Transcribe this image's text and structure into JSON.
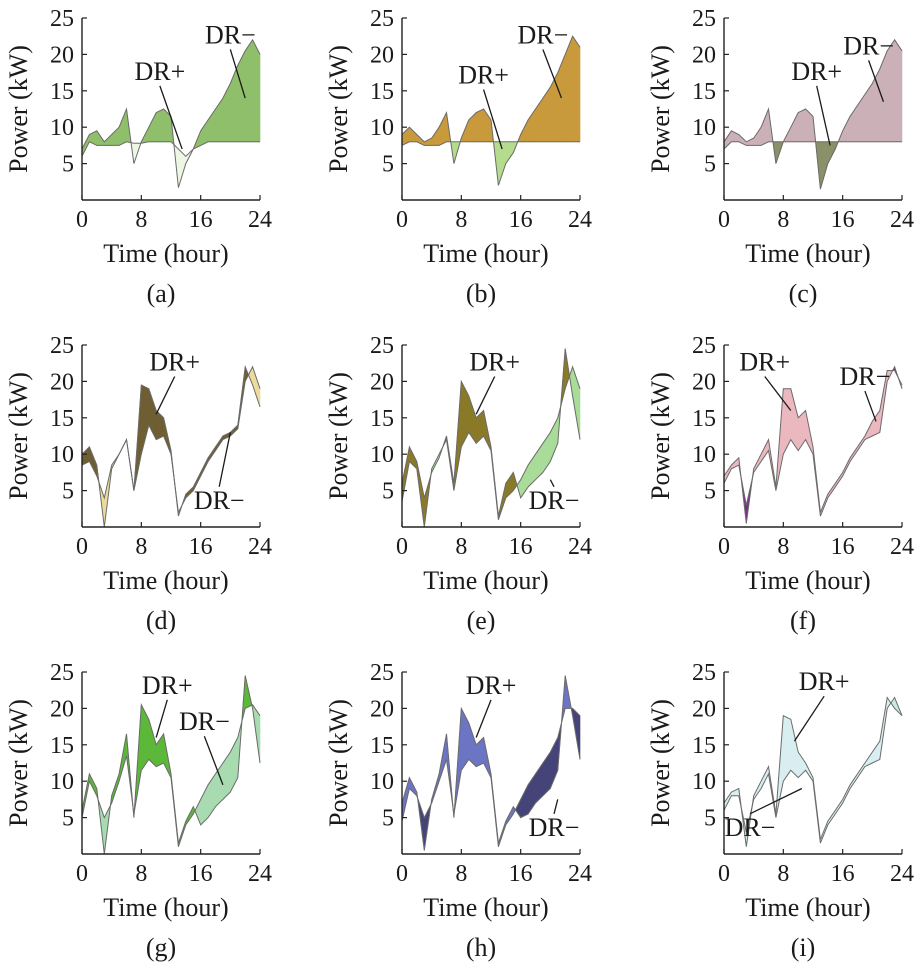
{
  "chart_data": [
    {
      "type": "area",
      "caption": "(a)",
      "xlabel": "Time (hour)",
      "ylabel": "Power (kW)",
      "xlim": [
        0,
        24
      ],
      "ylim": [
        0,
        25
      ],
      "xticks": [
        "0",
        "8",
        "16",
        "24"
      ],
      "yticks": [
        "5",
        "10",
        "15",
        "20",
        "25"
      ],
      "colors": {
        "plus": "#eef6e6",
        "minus": "#8fbf6a"
      },
      "x": [
        0,
        1,
        2,
        3,
        4,
        5,
        6,
        7,
        8,
        9,
        10,
        11,
        12,
        13,
        14,
        15,
        16,
        17,
        18,
        19,
        20,
        21,
        22,
        23,
        24
      ],
      "baseline": [
        6.0,
        8.0,
        7.5,
        7.5,
        7.5,
        7.5,
        8.0,
        7.8,
        7.8,
        8.0,
        8.0,
        8.0,
        8.0,
        7.0,
        6.0,
        7.0,
        7.5,
        8.0,
        8.0,
        8.0,
        8.0,
        8.0,
        8.0,
        8.0,
        8.0
      ],
      "adjusted": [
        7.0,
        9.0,
        9.5,
        8.0,
        9.0,
        10.0,
        12.5,
        5.0,
        8.0,
        10.0,
        12.0,
        12.5,
        11.5,
        1.7,
        5.0,
        7.0,
        9.5,
        11.0,
        12.5,
        14.0,
        16.0,
        18.5,
        20.5,
        22.0,
        20.0
      ],
      "annotations": [
        {
          "text": "DR+",
          "x": 13.5,
          "y": 7.0,
          "tx": 10.5,
          "ty": 16.5
        },
        {
          "text": "DR−",
          "x": 22.0,
          "y": 14.0,
          "tx": 20.0,
          "ty": 21.5
        }
      ]
    },
    {
      "type": "area",
      "caption": "(b)",
      "xlabel": "Time (hour)",
      "ylabel": "Power (kW)",
      "xlim": [
        0,
        24
      ],
      "ylim": [
        0,
        25
      ],
      "xticks": [
        "0",
        "8",
        "16",
        "24"
      ],
      "yticks": [
        "5",
        "10",
        "15",
        "20",
        "25"
      ],
      "colors": {
        "plus": "#b4dc8c",
        "minus": "#c89a3c"
      },
      "x": [
        0,
        1,
        2,
        3,
        4,
        5,
        6,
        7,
        8,
        9,
        10,
        11,
        12,
        13,
        14,
        15,
        16,
        17,
        18,
        19,
        20,
        21,
        22,
        23,
        24
      ],
      "baseline": [
        7.5,
        8.0,
        8.0,
        7.5,
        7.5,
        7.5,
        8.0,
        8.0,
        8.0,
        8.0,
        8.0,
        8.0,
        8.0,
        8.0,
        8.0,
        8.0,
        8.0,
        8.0,
        8.0,
        8.0,
        8.0,
        8.0,
        8.0,
        8.0,
        8.0
      ],
      "adjusted": [
        9.0,
        10.0,
        9.0,
        8.0,
        8.5,
        10.0,
        12.0,
        5.0,
        8.5,
        11.0,
        12.0,
        12.5,
        11.0,
        2.0,
        5.0,
        6.5,
        9.0,
        11.0,
        12.5,
        14.0,
        15.5,
        17.5,
        20.0,
        22.5,
        21.0
      ],
      "annotations": [
        {
          "text": "DR+",
          "x": 13.5,
          "y": 7.0,
          "tx": 11.0,
          "ty": 16.0
        },
        {
          "text": "DR−",
          "x": 21.5,
          "y": 14.0,
          "tx": 19.0,
          "ty": 21.5
        }
      ]
    },
    {
      "type": "area",
      "caption": "(c)",
      "xlabel": "Time (hour)",
      "ylabel": "Power (kW)",
      "xlim": [
        0,
        24
      ],
      "ylim": [
        0,
        25
      ],
      "xticks": [
        "0",
        "8",
        "16",
        "24"
      ],
      "yticks": [
        "5",
        "10",
        "15",
        "20",
        "25"
      ],
      "colors": {
        "plus": "#8a9068",
        "minus": "#cbb0b8"
      },
      "x": [
        0,
        1,
        2,
        3,
        4,
        5,
        6,
        7,
        8,
        9,
        10,
        11,
        12,
        13,
        14,
        15,
        16,
        17,
        18,
        19,
        20,
        21,
        22,
        23,
        24
      ],
      "baseline": [
        7.0,
        8.0,
        8.0,
        7.5,
        7.5,
        7.5,
        8.0,
        8.0,
        8.0,
        8.0,
        8.0,
        8.0,
        8.0,
        8.0,
        8.0,
        8.0,
        8.0,
        8.0,
        8.0,
        8.0,
        8.0,
        8.0,
        8.0,
        8.0,
        8.0
      ],
      "adjusted": [
        8.0,
        9.5,
        9.0,
        8.0,
        8.5,
        10.0,
        12.5,
        5.0,
        8.0,
        10.0,
        12.0,
        12.5,
        11.5,
        1.5,
        5.0,
        7.0,
        9.5,
        11.5,
        13.0,
        14.5,
        16.0,
        18.0,
        20.5,
        22.0,
        20.5
      ],
      "annotations": [
        {
          "text": "DR+",
          "x": 14.3,
          "y": 7.5,
          "tx": 12.5,
          "ty": 16.5
        },
        {
          "text": "DR−",
          "x": 21.5,
          "y": 13.5,
          "tx": 19.5,
          "ty": 20.0
        }
      ]
    },
    {
      "type": "area",
      "caption": "(d)",
      "xlabel": "Time (hour)",
      "ylabel": "Power (kW)",
      "xlim": [
        0,
        24
      ],
      "ylim": [
        0,
        25
      ],
      "xticks": [
        "0",
        "8",
        "16",
        "24"
      ],
      "yticks": [
        "5",
        "10",
        "15",
        "20",
        "25"
      ],
      "colors": {
        "plus": "#ecdc9c",
        "minus": "#6e5e32"
      },
      "x": [
        0,
        1,
        2,
        3,
        4,
        5,
        6,
        7,
        8,
        9,
        10,
        11,
        12,
        13,
        14,
        15,
        16,
        17,
        18,
        19,
        20,
        21,
        22,
        23,
        24
      ],
      "baseline": [
        8.5,
        9.0,
        7.0,
        4.0,
        8.5,
        10.0,
        12.0,
        5.0,
        10.0,
        14.0,
        12.0,
        12.5,
        10.0,
        2.0,
        4.0,
        5.0,
        7.0,
        9.0,
        10.5,
        12.0,
        12.5,
        13.5,
        20.0,
        22.0,
        19.0
      ],
      "adjusted": [
        10.0,
        11.0,
        8.5,
        0.0,
        8.0,
        10.0,
        12.0,
        5.0,
        19.5,
        19.0,
        16.0,
        15.0,
        10.5,
        1.5,
        4.5,
        5.5,
        7.5,
        9.5,
        11.0,
        12.5,
        13.0,
        14.0,
        22.0,
        19.5,
        16.5
      ],
      "annotations": [
        {
          "text": "DR+",
          "x": 10.0,
          "y": 15.5,
          "tx": 12.5,
          "ty": 21.5
        },
        {
          "text": "DR−",
          "x": 20.0,
          "y": 13.0,
          "tx": 18.5,
          "ty": 2.5
        }
      ]
    },
    {
      "type": "area",
      "caption": "(e)",
      "xlabel": "Time (hour)",
      "ylabel": "Power (kW)",
      "xlim": [
        0,
        24
      ],
      "ylim": [
        0,
        25
      ],
      "xticks": [
        "0",
        "8",
        "16",
        "24"
      ],
      "yticks": [
        "5",
        "10",
        "15",
        "20",
        "25"
      ],
      "colors": {
        "plus": "#a8dc98",
        "minus": "#8a7a28"
      },
      "x": [
        0,
        1,
        2,
        3,
        4,
        5,
        6,
        7,
        8,
        9,
        10,
        11,
        12,
        13,
        14,
        15,
        16,
        17,
        18,
        19,
        20,
        21,
        22,
        23,
        24
      ],
      "baseline": [
        3.5,
        9.0,
        8.0,
        0.0,
        8.0,
        10.0,
        12.0,
        5.0,
        11.0,
        13.0,
        11.5,
        12.5,
        10.5,
        1.0,
        4.0,
        5.0,
        6.5,
        8.5,
        10.0,
        11.5,
        13.0,
        15.0,
        19.0,
        22.0,
        19.0
      ],
      "adjusted": [
        6.0,
        11.0,
        9.0,
        4.0,
        7.5,
        9.5,
        12.5,
        6.0,
        20.0,
        18.0,
        15.0,
        16.0,
        11.0,
        1.5,
        6.0,
        7.5,
        4.0,
        5.5,
        6.5,
        7.5,
        9.0,
        11.5,
        24.5,
        18.0,
        12.0
      ],
      "annotations": [
        {
          "text": "DR+",
          "x": 10.0,
          "y": 15.5,
          "tx": 12.5,
          "ty": 21.5
        },
        {
          "text": "DR−",
          "x": 20.0,
          "y": 6.5,
          "tx": 20.5,
          "ty": 2.5
        }
      ]
    },
    {
      "type": "area",
      "caption": "(f)",
      "xlabel": "Time (hour)",
      "ylabel": "Power (kW)",
      "xlim": [
        0,
        24
      ],
      "ylim": [
        0,
        25
      ],
      "xticks": [
        "0",
        "8",
        "16",
        "24"
      ],
      "yticks": [
        "5",
        "10",
        "15",
        "20",
        "25"
      ],
      "colors": {
        "plus": "#7a2c8c",
        "minus": "#ecb8c0"
      },
      "x": [
        0,
        1,
        2,
        3,
        4,
        5,
        6,
        7,
        8,
        9,
        10,
        11,
        12,
        13,
        14,
        15,
        16,
        17,
        18,
        19,
        20,
        21,
        22,
        23,
        24
      ],
      "baseline": [
        6.0,
        8.0,
        8.5,
        3.0,
        7.5,
        9.0,
        10.5,
        5.0,
        10.0,
        12.0,
        10.5,
        12.0,
        10.0,
        1.5,
        4.0,
        5.5,
        7.0,
        9.0,
        10.5,
        12.0,
        12.5,
        13.0,
        20.0,
        22.0,
        19.0
      ],
      "adjusted": [
        7.0,
        8.5,
        9.5,
        0.5,
        8.0,
        10.0,
        12.0,
        5.5,
        19.0,
        19.0,
        15.0,
        16.0,
        11.0,
        2.0,
        4.5,
        6.0,
        7.5,
        9.5,
        11.0,
        12.5,
        14.5,
        16.0,
        21.5,
        21.5,
        19.5
      ],
      "annotations": [
        {
          "text": "DR+",
          "x": 9.0,
          "y": 16.0,
          "tx": 5.5,
          "ty": 21.5
        },
        {
          "text": "DR−",
          "x": 20.5,
          "y": 14.5,
          "tx": 19.0,
          "ty": 19.5
        }
      ]
    },
    {
      "type": "area",
      "caption": "(g)",
      "xlabel": "Time (hour)",
      "ylabel": "Power (kW)",
      "xlim": [
        0,
        24
      ],
      "ylim": [
        0,
        25
      ],
      "xticks": [
        "0",
        "8",
        "16",
        "24"
      ],
      "yticks": [
        "5",
        "10",
        "15",
        "20",
        "25"
      ],
      "colors": {
        "plus": "#a8dcb0",
        "minus": "#5cb838"
      },
      "x": [
        0,
        1,
        2,
        3,
        4,
        5,
        6,
        7,
        8,
        9,
        10,
        11,
        12,
        13,
        14,
        15,
        16,
        17,
        18,
        19,
        20,
        21,
        22,
        23,
        24
      ],
      "baseline": [
        5.0,
        10.0,
        8.0,
        5.0,
        7.0,
        10.0,
        13.5,
        5.5,
        11.5,
        13.0,
        12.0,
        12.5,
        10.5,
        1.0,
        4.0,
        5.5,
        7.5,
        9.5,
        11.0,
        12.5,
        14.0,
        16.0,
        20.0,
        20.5,
        19.0
      ],
      "adjusted": [
        6.0,
        11.0,
        9.0,
        0.0,
        8.0,
        11.0,
        16.5,
        5.0,
        20.5,
        18.5,
        15.0,
        16.5,
        11.0,
        1.5,
        4.5,
        6.5,
        4.0,
        5.0,
        6.5,
        7.5,
        8.5,
        10.5,
        24.5,
        20.0,
        12.5
      ],
      "annotations": [
        {
          "text": "DR+",
          "x": 10.0,
          "y": 16.0,
          "tx": 11.5,
          "ty": 22.0
        },
        {
          "text": "DR−",
          "x": 19.0,
          "y": 9.5,
          "tx": 16.5,
          "ty": 17.0
        }
      ]
    },
    {
      "type": "area",
      "caption": "(h)",
      "xlabel": "Time (hour)",
      "ylabel": "Power (kW)",
      "xlim": [
        0,
        24
      ],
      "ylim": [
        0,
        25
      ],
      "xticks": [
        "0",
        "8",
        "16",
        "24"
      ],
      "yticks": [
        "5",
        "10",
        "15",
        "20",
        "25"
      ],
      "colors": {
        "plus": "#444478",
        "minus": "#6c74c4"
      },
      "x": [
        0,
        1,
        2,
        3,
        4,
        5,
        6,
        7,
        8,
        9,
        10,
        11,
        12,
        13,
        14,
        15,
        16,
        17,
        18,
        19,
        20,
        21,
        22,
        23,
        24
      ],
      "baseline": [
        4.5,
        9.0,
        8.0,
        5.0,
        7.0,
        10.0,
        13.0,
        5.5,
        11.5,
        13.0,
        12.0,
        12.5,
        10.5,
        1.0,
        4.0,
        5.5,
        7.5,
        9.5,
        11.0,
        12.5,
        14.0,
        16.0,
        20.0,
        20.0,
        19.0
      ],
      "adjusted": [
        7.0,
        10.5,
        8.5,
        0.5,
        7.5,
        11.0,
        16.5,
        5.0,
        20.0,
        18.0,
        15.0,
        16.0,
        11.0,
        1.5,
        4.5,
        6.5,
        5.0,
        5.5,
        7.0,
        8.0,
        9.0,
        11.5,
        24.5,
        19.0,
        13.0
      ],
      "annotations": [
        {
          "text": "DR+",
          "x": 10.0,
          "y": 16.0,
          "tx": 12.0,
          "ty": 22.0
        },
        {
          "text": "DR−",
          "x": 21.0,
          "y": 7.5,
          "tx": 20.5,
          "ty": 2.5
        }
      ]
    },
    {
      "type": "area",
      "caption": "(i)",
      "xlabel": "Time (hour)",
      "ylabel": "Power (kW)",
      "xlim": [
        0,
        24
      ],
      "ylim": [
        0,
        25
      ],
      "xticks": [
        "0",
        "8",
        "16",
        "24"
      ],
      "yticks": [
        "5",
        "10",
        "15",
        "20",
        "25"
      ],
      "colors": {
        "plus": "#c6ece4",
        "minus": "#d8eef0"
      },
      "x": [
        0,
        1,
        2,
        3,
        4,
        5,
        6,
        7,
        8,
        9,
        10,
        11,
        12,
        13,
        14,
        15,
        16,
        17,
        18,
        19,
        20,
        21,
        22,
        23,
        24
      ],
      "baseline": [
        6.0,
        8.0,
        8.0,
        3.0,
        7.5,
        9.0,
        11.0,
        5.0,
        10.0,
        11.5,
        10.5,
        11.5,
        10.0,
        1.5,
        4.0,
        5.5,
        7.0,
        9.0,
        10.5,
        12.0,
        12.5,
        13.0,
        20.0,
        21.5,
        19.0
      ],
      "adjusted": [
        7.0,
        8.5,
        9.0,
        1.0,
        8.0,
        10.0,
        12.0,
        5.5,
        19.0,
        18.5,
        14.0,
        12.5,
        10.5,
        2.0,
        4.5,
        6.0,
        7.5,
        9.5,
        11.0,
        12.5,
        14.0,
        15.5,
        21.5,
        20.0,
        19.0
      ],
      "annotations": [
        {
          "text": "DR+",
          "x": 9.5,
          "y": 15.5,
          "tx": 13.5,
          "ty": 22.5
        },
        {
          "text": "DR−",
          "x": 10.5,
          "y": 9.0,
          "tx": 3.5,
          "ty": 2.5
        }
      ]
    }
  ]
}
